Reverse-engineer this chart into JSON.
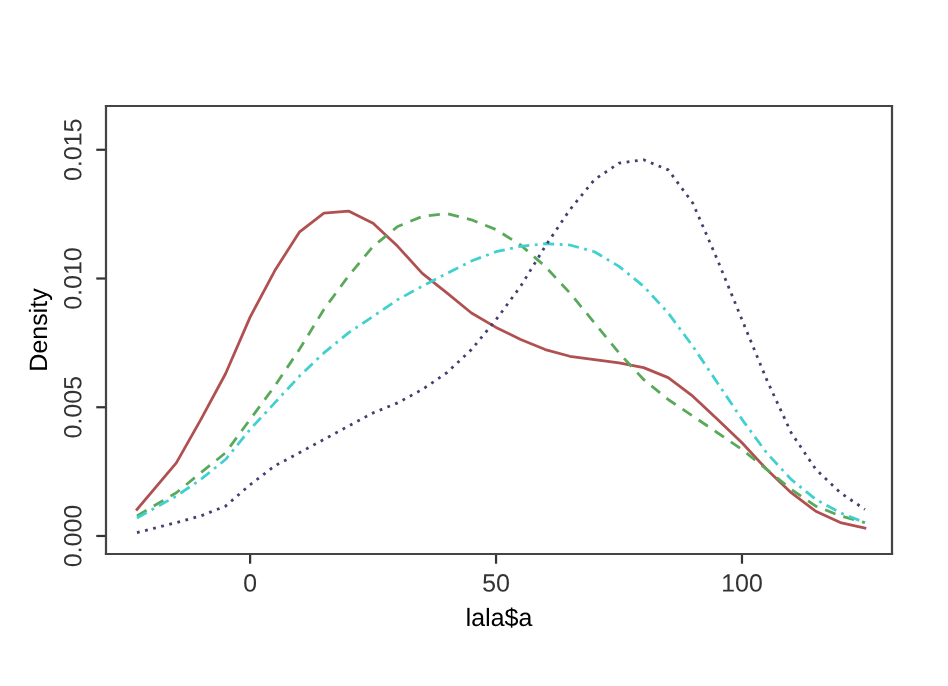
{
  "chart_data": {
    "type": "line",
    "xlabel": "lala$a",
    "ylabel": "Density",
    "x": [
      -23,
      -15,
      -10,
      -5,
      0,
      5,
      10,
      15,
      20,
      25,
      30,
      35,
      40,
      45,
      50,
      55,
      60,
      65,
      70,
      75,
      80,
      85,
      90,
      95,
      100,
      105,
      110,
      115,
      120,
      125
    ],
    "series": [
      {
        "color": "#b05050",
        "line_style": "solid",
        "values": [
          0.00103,
          0.00284,
          0.00453,
          0.0063,
          0.0085,
          0.0103,
          0.0118,
          0.01254,
          0.01262,
          0.01215,
          0.01125,
          0.0102,
          0.00944,
          0.00866,
          0.0081,
          0.00763,
          0.00724,
          0.00698,
          0.00685,
          0.00672,
          0.00654,
          0.00615,
          0.00543,
          0.00453,
          0.00362,
          0.00259,
          0.00168,
          0.00096,
          0.00052,
          0.00031
        ]
      },
      {
        "color": "#5aa85a",
        "line_style": "dashed",
        "values": [
          0.00078,
          0.00168,
          0.00246,
          0.00323,
          0.00453,
          0.00582,
          0.00724,
          0.0088,
          0.0101,
          0.01125,
          0.01202,
          0.01241,
          0.01252,
          0.01228,
          0.0119,
          0.0113,
          0.01047,
          0.00944,
          0.00828,
          0.00711,
          0.00608,
          0.0053,
          0.00466,
          0.00401,
          0.00336,
          0.00259,
          0.00181,
          0.00116,
          0.00078,
          0.00052
        ]
      },
      {
        "color": "#40d0d0",
        "line_style": "dashdot",
        "values": [
          0.0007,
          0.00155,
          0.0022,
          0.00297,
          0.00414,
          0.00517,
          0.0062,
          0.00711,
          0.00789,
          0.00853,
          0.00918,
          0.0097,
          0.0102,
          0.01068,
          0.01104,
          0.01125,
          0.01135,
          0.0113,
          0.01104,
          0.01047,
          0.0097,
          0.00866,
          0.00737,
          0.00595,
          0.00453,
          0.00323,
          0.0022,
          0.00142,
          0.0009,
          0.00052
        ]
      },
      {
        "color": "#404070",
        "line_style": "dotted",
        "values": [
          0.00013,
          0.00052,
          0.00078,
          0.00116,
          0.00199,
          0.00272,
          0.00323,
          0.00375,
          0.00427,
          0.00478,
          0.00517,
          0.00569,
          0.00634,
          0.00724,
          0.0084,
          0.0097,
          0.01125,
          0.01267,
          0.01384,
          0.01448,
          0.01461,
          0.01422,
          0.01293,
          0.01073,
          0.0084,
          0.00608,
          0.00401,
          0.00259,
          0.00168,
          0.00103
        ]
      }
    ],
    "xlim": [
      -29.3,
      130.5
    ],
    "ylim": [
      -0.0007,
      0.0167
    ],
    "xticks": [
      0,
      50,
      100
    ],
    "yticks": [
      {
        "value": 0,
        "label": "0.000"
      },
      {
        "value": 0.005,
        "label": "0.005"
      },
      {
        "value": 0.01,
        "label": "0.010"
      },
      {
        "value": 0.015,
        "label": "0.015"
      }
    ],
    "grid": false,
    "legend": false
  }
}
